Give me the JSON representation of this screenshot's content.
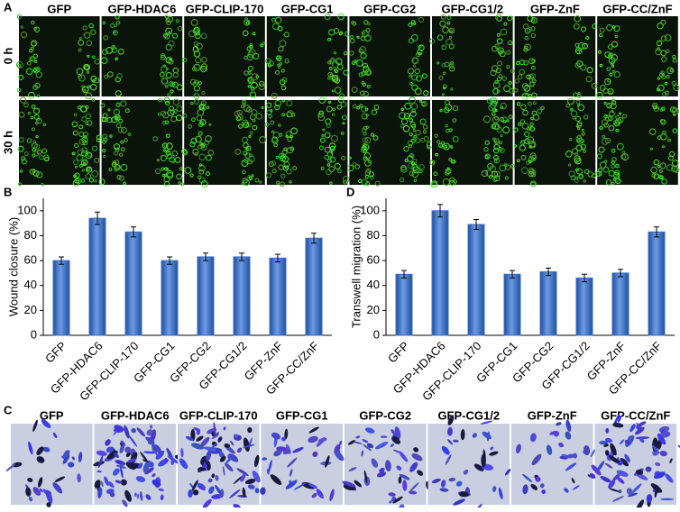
{
  "panel_a": {
    "letter": "A",
    "columns": [
      "GFP",
      "GFP-HDAC6",
      "GFP-CLIP-170",
      "GFP-CG1",
      "GFP-CG2",
      "GFP-CG1/2",
      "GFP-ZnF",
      "GFP-CC/ZnF"
    ],
    "rows": [
      "0 h",
      "30 h"
    ]
  },
  "panel_c": {
    "letter": "C",
    "columns": [
      "GFP",
      "GFP-HDAC6",
      "GFP-CLIP-170",
      "GFP-CG1",
      "GFP-CG2",
      "GFP-CG1/2",
      "GFP-ZnF",
      "GFP-CC/ZnF"
    ]
  },
  "chart_data": [
    {
      "letter": "B",
      "type": "bar",
      "y_label": "Wound closure (%)",
      "categories": [
        "GFP",
        "GFP-HDAC6",
        "GFP-CLIP-170",
        "GFP-CG1",
        "GFP-CG2",
        "GFP-CG1/2",
        "GFP-ZnF",
        "GFP-CC/ZnF"
      ],
      "values": [
        60,
        94,
        83,
        60,
        63,
        63,
        62,
        78
      ],
      "errors": [
        3,
        5,
        4,
        3,
        3,
        3,
        3,
        4
      ],
      "color": "#3b6fc6",
      "ylim": [
        0,
        110
      ],
      "yticks": [
        0,
        20,
        40,
        60,
        80,
        100
      ]
    },
    {
      "letter": "D",
      "type": "bar",
      "y_label": "Transwell migration (%)",
      "categories": [
        "GFP",
        "GFP-HDAC6",
        "GFP-CLIP-170",
        "GFP-CG1",
        "GFP-CG2",
        "GFP-CG1/2",
        "GFP-ZnF",
        "GFP-CC/ZnF"
      ],
      "values": [
        49,
        100,
        89,
        49,
        51,
        46,
        50,
        83
      ],
      "errors": [
        3,
        5,
        4,
        3,
        3,
        3,
        3,
        4
      ],
      "color": "#3b6fc6",
      "ylim": [
        0,
        110
      ],
      "yticks": [
        0,
        20,
        40,
        60,
        80,
        100
      ]
    }
  ]
}
